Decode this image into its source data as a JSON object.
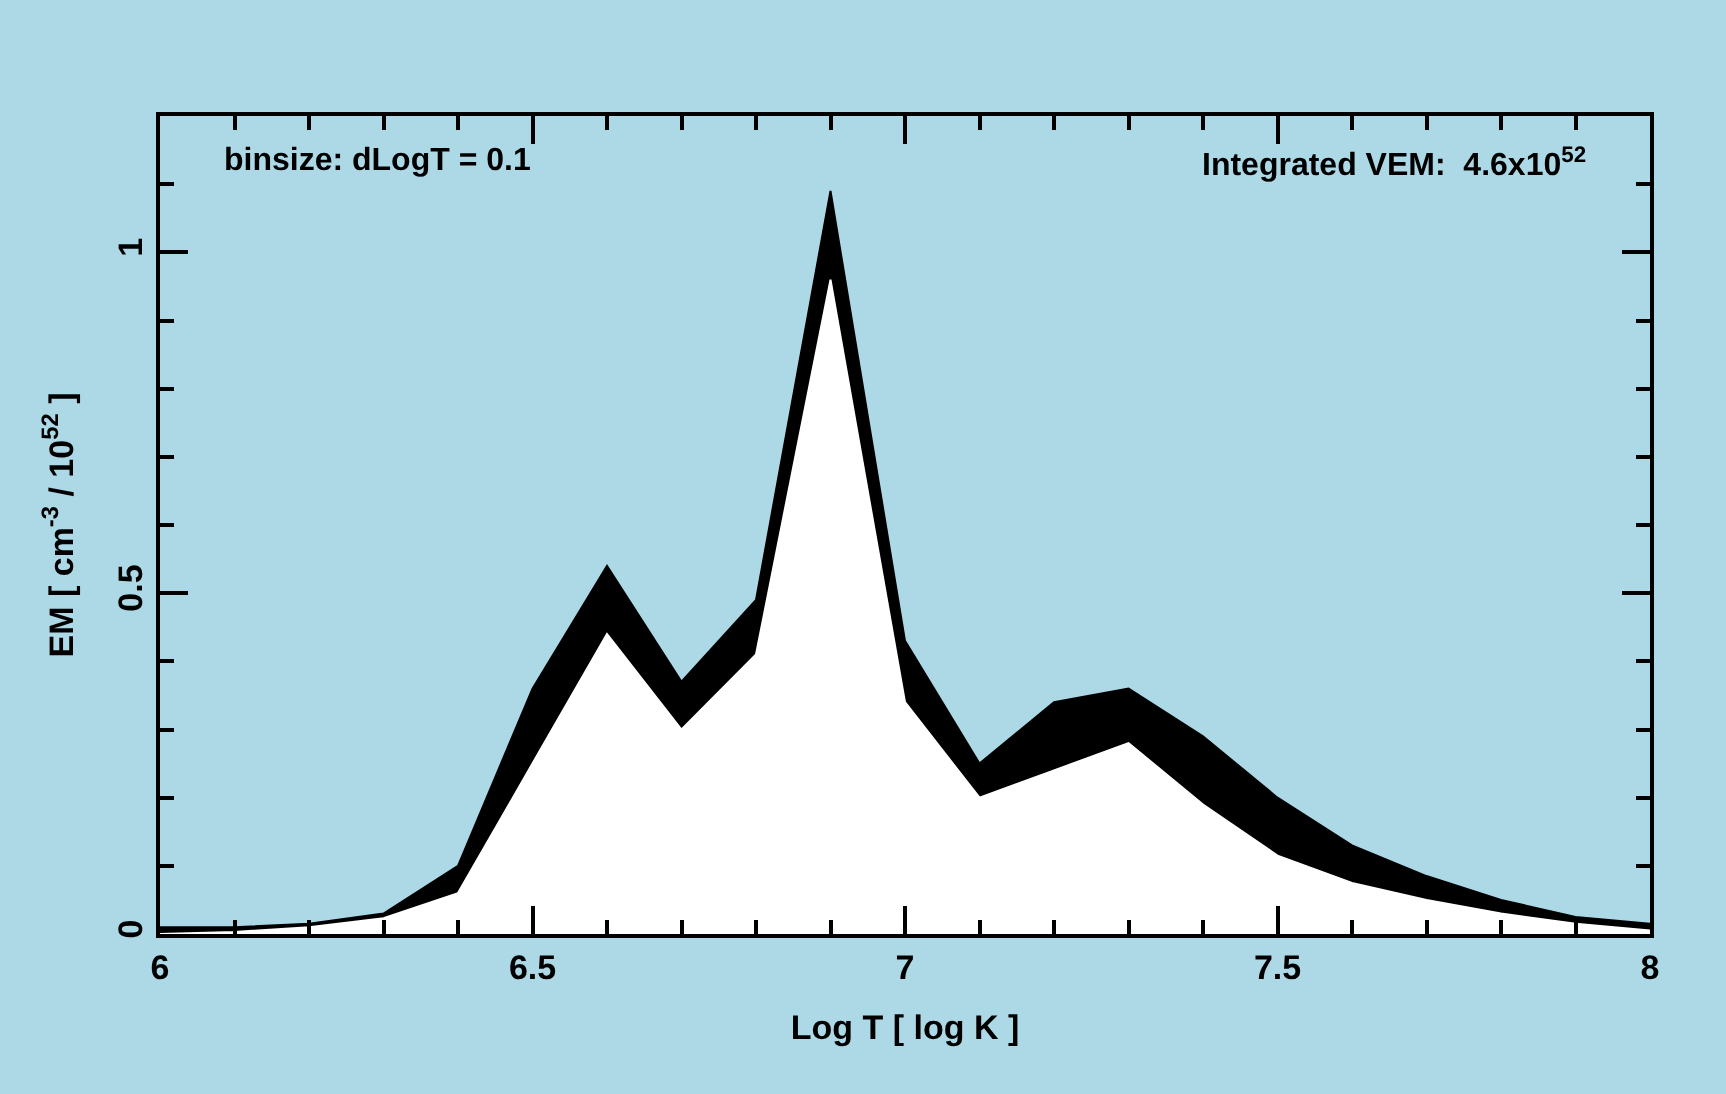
{
  "chart_data": {
    "type": "area",
    "xlabel": "Log T [ log K ]",
    "ylabel": "EM [ cm$^{-3}$ / 10$^{52}$ ]",
    "annotations": [
      "binsize: dLogT = 0.1",
      "Integrated VEM:  4.6x10$^{52}$"
    ],
    "x": [
      6.0,
      6.1,
      6.2,
      6.3,
      6.4,
      6.5,
      6.6,
      6.7,
      6.8,
      6.9,
      7.0,
      7.1,
      7.2,
      7.3,
      7.4,
      7.5,
      7.6,
      7.7,
      7.8,
      7.9,
      8.0
    ],
    "series": [
      {
        "color": "#000000",
        "values": [
          0.01,
          0.01,
          0.015,
          0.03,
          0.1,
          0.36,
          0.54,
          0.37,
          0.49,
          1.09,
          0.43,
          0.25,
          0.34,
          0.36,
          0.29,
          0.2,
          0.13,
          0.085,
          0.05,
          0.025,
          0.015
        ]
      },
      {
        "color": "#ffffff",
        "values": [
          0.0,
          0.003,
          0.01,
          0.023,
          0.06,
          0.25,
          0.44,
          0.3,
          0.41,
          0.96,
          0.34,
          0.2,
          0.24,
          0.28,
          0.19,
          0.115,
          0.075,
          0.05,
          0.03,
          0.015,
          0.005
        ]
      }
    ],
    "xlim": [
      6,
      8
    ],
    "ylim": [
      0,
      1.2
    ],
    "xticks": [
      6,
      {
        "value": 6.1,
        "label": null
      },
      {
        "value": 6.2,
        "label": null
      },
      {
        "value": 6.3,
        "label": null
      },
      {
        "value": 6.4,
        "label": null
      },
      6.5,
      {
        "value": 6.6,
        "label": null
      },
      {
        "value": 6.7,
        "label": null
      },
      {
        "value": 6.8,
        "label": null
      },
      {
        "value": 6.9,
        "label": null
      },
      7,
      {
        "value": 7.1,
        "label": null
      },
      {
        "value": 7.2,
        "label": null
      },
      {
        "value": 7.3,
        "label": null
      },
      {
        "value": 7.4,
        "label": null
      },
      7.5,
      {
        "value": 7.6,
        "label": null
      },
      {
        "value": 7.7,
        "label": null
      },
      {
        "value": 7.8,
        "label": null
      },
      {
        "value": 7.9,
        "label": null
      },
      8
    ],
    "yticks": [
      0,
      {
        "value": 0.1,
        "label": null
      },
      {
        "value": 0.2,
        "label": null
      },
      {
        "value": 0.3,
        "label": null
      },
      {
        "value": 0.4,
        "label": null
      },
      0.5,
      {
        "value": 0.6,
        "label": null
      },
      {
        "value": 0.7,
        "label": null
      },
      {
        "value": 0.8,
        "label": null
      },
      {
        "value": 0.9,
        "label": null
      },
      1,
      {
        "value": 1.1,
        "label": null
      }
    ],
    "grid": false
  }
}
